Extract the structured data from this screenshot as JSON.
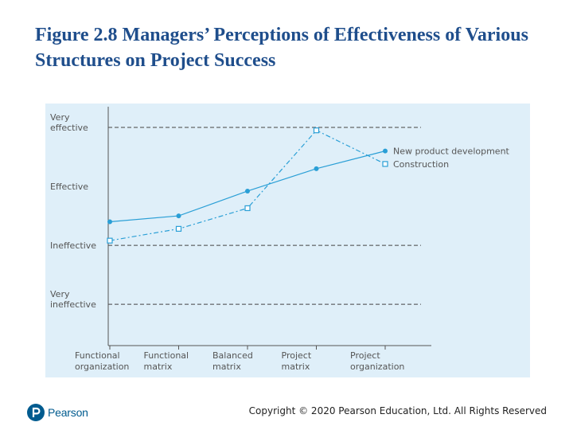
{
  "slide": {
    "title": "Figure 2.8 Managers’ Perceptions of Effectiveness of Various Structures on Project Success"
  },
  "footer": {
    "logo_text": "Pearson",
    "copyright": "Copyright © 2020 Pearson Education, Ltd. All Rights Reserved"
  },
  "colors": {
    "title": "#1f4e8c",
    "panel_background": "#dfeff9",
    "series_line": "#2a9fd6",
    "axis": "#555555",
    "reference_line": "#444444"
  },
  "chart_data": {
    "type": "line",
    "categories": [
      [
        "Functional",
        "organization"
      ],
      [
        "Functional",
        "matrix"
      ],
      [
        "Balanced",
        "matrix"
      ],
      [
        "Project",
        "matrix"
      ],
      [
        "Project",
        "organization"
      ]
    ],
    "y_levels": [
      {
        "label": [
          "Very",
          "ineffective"
        ],
        "value": 1
      },
      {
        "label": [
          "Ineffective"
        ],
        "value": 2
      },
      {
        "label": [
          "Effective"
        ],
        "value": 3
      },
      {
        "label": [
          "Very",
          "effective"
        ],
        "value": 4
      }
    ],
    "ylim": [
      0.3,
      4
    ],
    "reference_lines": [
      1,
      2,
      4
    ],
    "series": [
      {
        "name": "New product development",
        "marker": "filled-circle",
        "line_style": "solid",
        "values": [
          2.4,
          2.5,
          2.92,
          3.3,
          3.6
        ]
      },
      {
        "name": "Construction",
        "marker": "open-square",
        "line_style": "dash-dot",
        "values": [
          2.08,
          2.28,
          2.63,
          3.95,
          3.38
        ]
      }
    ],
    "legend_placement": "right-end-of-lines"
  }
}
